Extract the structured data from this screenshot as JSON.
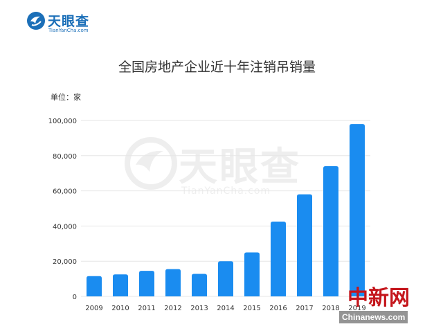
{
  "logo": {
    "name": "天眼查",
    "domain": "TianYanCha.com"
  },
  "watermark": {
    "name": "天眼查",
    "domain": "TianYanCha.com"
  },
  "source_stamp": {
    "name": "中新网",
    "url": "Chinanews.com"
  },
  "colors": {
    "bar": "#1a8cf0",
    "text": "#333333",
    "grid": "#e6e6e6",
    "stamp": "#c4161c"
  },
  "chart_data": {
    "type": "bar",
    "title": "全国房地产企业近十年注销吊销量",
    "unit_label": "单位：家",
    "xlabel": "",
    "ylabel": "",
    "ylim": [
      0,
      100000
    ],
    "yticks": [
      0,
      20000,
      40000,
      60000,
      80000,
      100000
    ],
    "ytick_labels": [
      "0",
      "20,000",
      "40,000",
      "60,000",
      "80,000",
      "100,000"
    ],
    "categories": [
      "2009",
      "2010",
      "2011",
      "2012",
      "2013",
      "2014",
      "2015",
      "2016",
      "2017",
      "2018",
      "2019"
    ],
    "values": [
      11500,
      12500,
      14500,
      15500,
      12800,
      20000,
      25000,
      42500,
      58000,
      74000,
      98000
    ],
    "grid": true,
    "legend": "none"
  }
}
